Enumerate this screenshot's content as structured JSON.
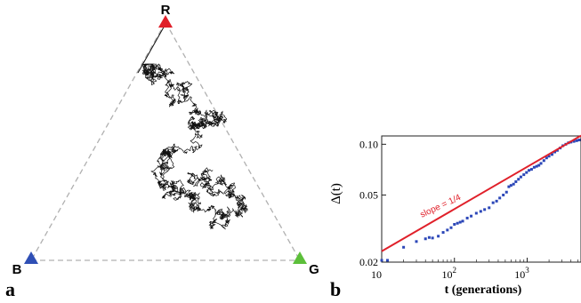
{
  "panels": {
    "a_label": "a",
    "b_label": "b"
  },
  "ternary": {
    "vertices": [
      {
        "label": "R",
        "color": "#e0202a"
      },
      {
        "label": "B",
        "color": "#2f4fb5"
      },
      {
        "label": "G",
        "color": "#5cbf3a"
      }
    ],
    "edge_color": "#b0b0b0",
    "walk_color": "#111111",
    "walk_seed": 7,
    "walk_steps": 2600
  },
  "chart_data": {
    "type": "scatter",
    "title": "",
    "xlabel": "t (generations)",
    "ylabel": "Δ(t)",
    "x_scale": "log",
    "y_scale": "log",
    "xlim": [
      10,
      5500
    ],
    "ylim": [
      0.02,
      0.112
    ],
    "x_ticks": [
      {
        "value": 10,
        "base": "10",
        "exp": ""
      },
      {
        "value": 100,
        "base": "10",
        "exp": "2"
      },
      {
        "value": 1000,
        "base": "10",
        "exp": "3"
      }
    ],
    "y_ticks": [
      {
        "value": 0.02,
        "label": "0.02"
      },
      {
        "value": 0.05,
        "label": "0.05"
      },
      {
        "value": 0.1,
        "label": "0.10"
      }
    ],
    "series": [
      {
        "marker_color": "#2c47b8",
        "points": [
          [
            10,
            0.0205
          ],
          [
            12,
            0.0205
          ],
          [
            20,
            0.0245
          ],
          [
            30,
            0.0265
          ],
          [
            40,
            0.0275
          ],
          [
            45,
            0.028
          ],
          [
            50,
            0.0278
          ],
          [
            60,
            0.0285
          ],
          [
            70,
            0.03
          ],
          [
            80,
            0.031
          ],
          [
            90,
            0.032
          ],
          [
            100,
            0.0335
          ],
          [
            110,
            0.034
          ],
          [
            120,
            0.0345
          ],
          [
            130,
            0.035
          ],
          [
            150,
            0.0365
          ],
          [
            170,
            0.0375
          ],
          [
            200,
            0.039
          ],
          [
            230,
            0.04
          ],
          [
            260,
            0.041
          ],
          [
            300,
            0.042
          ],
          [
            340,
            0.045
          ],
          [
            380,
            0.046
          ],
          [
            420,
            0.048
          ],
          [
            470,
            0.05
          ],
          [
            520,
            0.052
          ],
          [
            560,
            0.056
          ],
          [
            600,
            0.057
          ],
          [
            650,
            0.058
          ],
          [
            700,
            0.06
          ],
          [
            760,
            0.062
          ],
          [
            820,
            0.064
          ],
          [
            900,
            0.066
          ],
          [
            980,
            0.068
          ],
          [
            1060,
            0.07
          ],
          [
            1150,
            0.071
          ],
          [
            1250,
            0.073
          ],
          [
            1350,
            0.074
          ],
          [
            1450,
            0.075
          ],
          [
            1550,
            0.077
          ],
          [
            1700,
            0.08
          ],
          [
            1850,
            0.083
          ],
          [
            2000,
            0.085
          ],
          [
            2200,
            0.087
          ],
          [
            2400,
            0.09
          ],
          [
            2600,
            0.092
          ],
          [
            2850,
            0.095
          ],
          [
            3100,
            0.098
          ],
          [
            3400,
            0.1
          ],
          [
            3700,
            0.102
          ],
          [
            4000,
            0.103
          ],
          [
            4400,
            0.104
          ],
          [
            4800,
            0.105
          ],
          [
            5200,
            0.106
          ]
        ]
      }
    ],
    "fit_line": {
      "label": "slope = 1/4",
      "color": "#e0202a",
      "x": [
        10,
        5500
      ],
      "y": [
        0.0232,
        0.1125
      ]
    },
    "grid": false
  }
}
